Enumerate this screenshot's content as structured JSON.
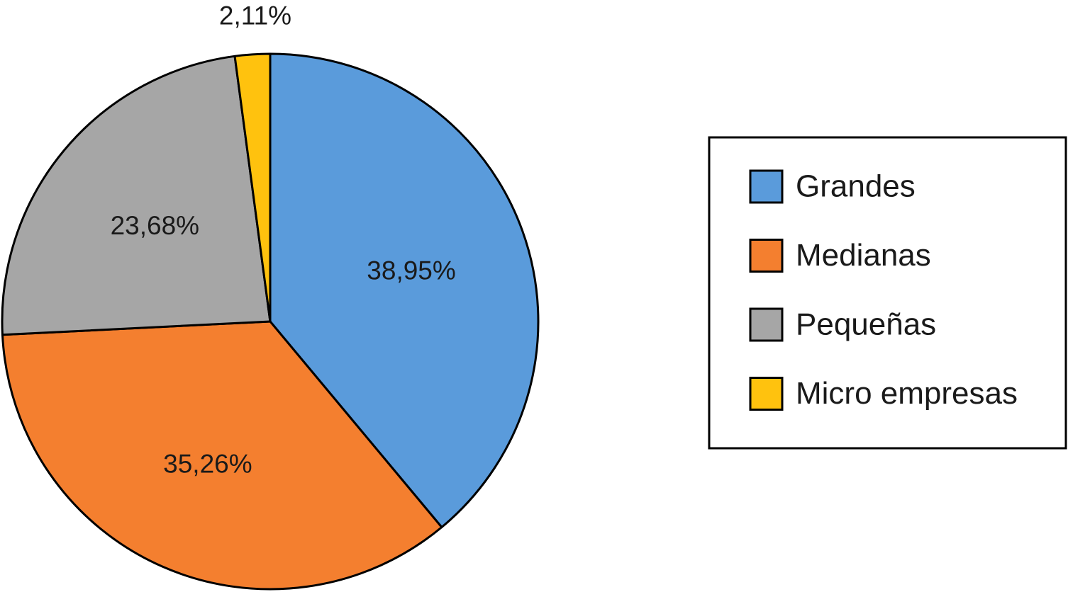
{
  "chart_data": {
    "type": "pie",
    "categories": [
      "Grandes",
      "Medianas",
      "Pequeñas",
      "Micro empresas"
    ],
    "values": [
      38.95,
      35.26,
      23.68,
      2.11
    ],
    "labels": [
      "38,95%",
      "35,26%",
      "23,68%",
      "2,11%"
    ],
    "colors": [
      "#5a9bdb",
      "#f47f2f",
      "#a6a6a6",
      "#ffc20e"
    ],
    "start_angle": "12 o'clock",
    "direction": "clockwise",
    "legend": {
      "placement": "right",
      "entries": [
        "Grandes",
        "Medianas",
        "Pequeñas",
        "Micro empresas"
      ]
    }
  }
}
